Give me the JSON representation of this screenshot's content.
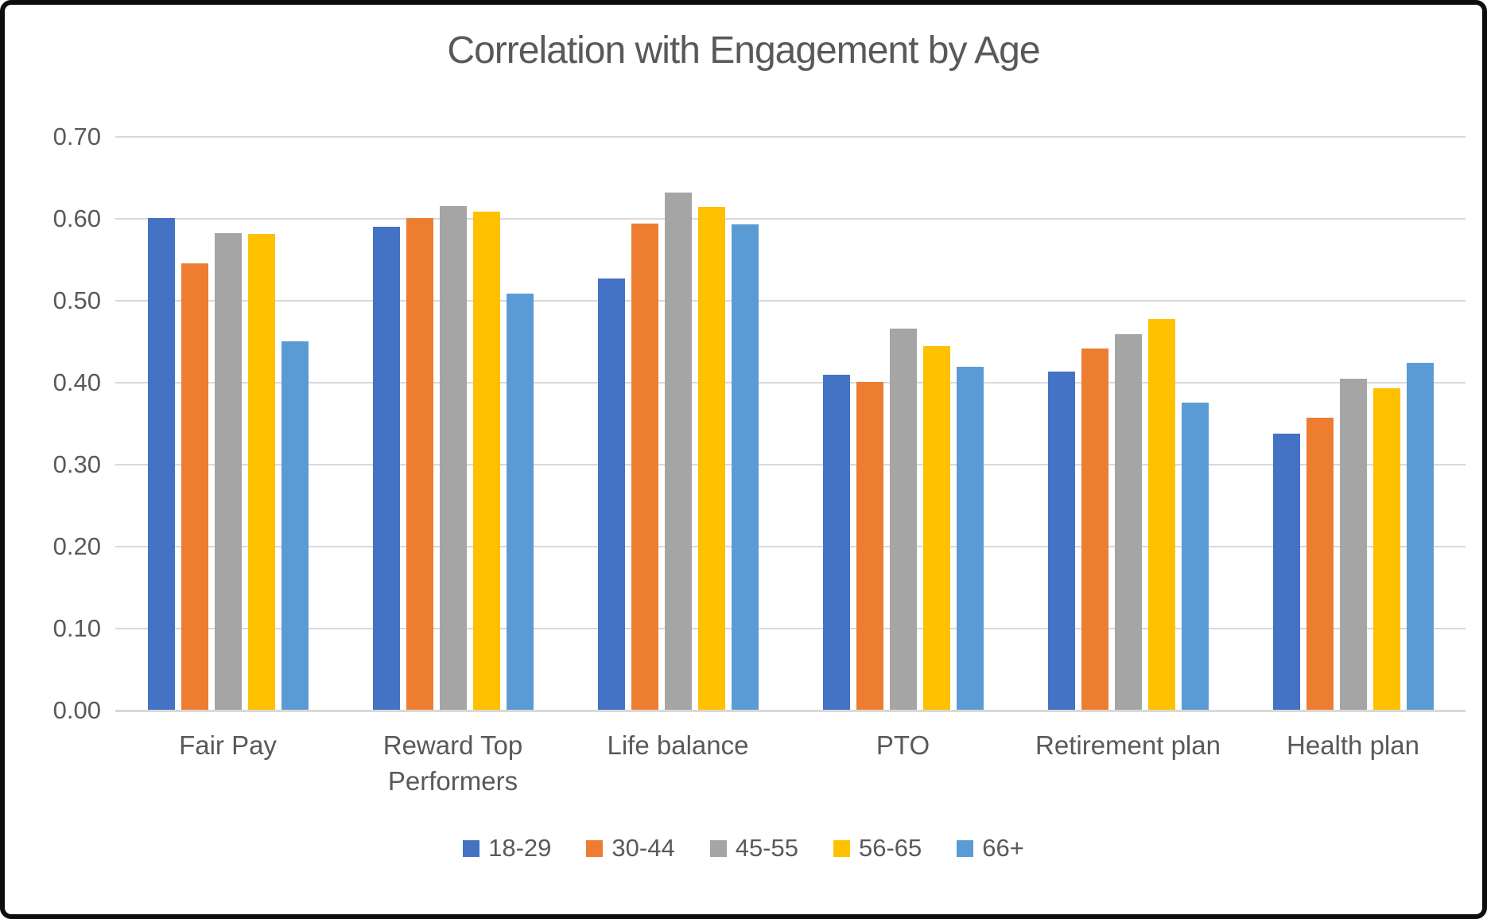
{
  "chart_data": {
    "type": "bar",
    "title": "Correlation with Engagement by Age",
    "xlabel": "",
    "ylabel": "",
    "ylim": [
      0,
      0.7
    ],
    "ytick_step": 0.1,
    "yticks": [
      "0.00",
      "0.10",
      "0.20",
      "0.30",
      "0.40",
      "0.50",
      "0.60",
      "0.70"
    ],
    "grid": true,
    "legend_position": "bottom",
    "categories": [
      "Fair Pay",
      "Reward Top Performers",
      "Life balance",
      "PTO",
      "Retirement plan",
      "Health plan"
    ],
    "series": [
      {
        "name": "18-29",
        "color": "#4472C4",
        "values": [
          0.601,
          0.59,
          0.527,
          0.41,
          0.414,
          0.338
        ]
      },
      {
        "name": "30-44",
        "color": "#ED7D31",
        "values": [
          0.546,
          0.601,
          0.594,
          0.401,
          0.442,
          0.357
        ]
      },
      {
        "name": "45-55",
        "color": "#A5A5A5",
        "values": [
          0.583,
          0.616,
          0.632,
          0.466,
          0.459,
          0.405
        ]
      },
      {
        "name": "56-65",
        "color": "#FFC000",
        "values": [
          0.582,
          0.609,
          0.615,
          0.445,
          0.478,
          0.393
        ]
      },
      {
        "name": "66+",
        "color": "#5B9BD5",
        "values": [
          0.45,
          0.509,
          0.593,
          0.419,
          0.376,
          0.424
        ]
      }
    ],
    "colors": {
      "text": "#595959",
      "gridline": "#D9D9D9",
      "frame_border": "#0D0D0D",
      "background": "#FFFFFF"
    }
  }
}
